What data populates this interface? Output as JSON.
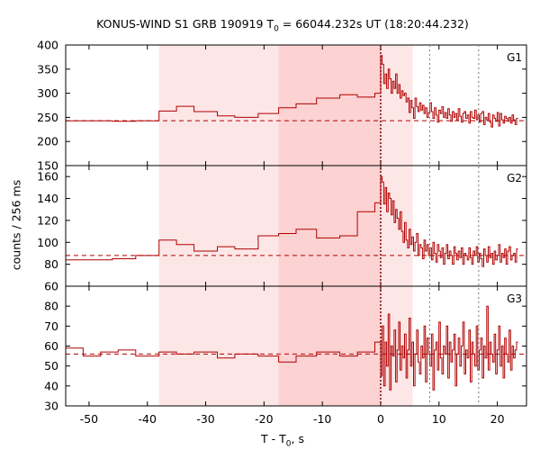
{
  "chart_data": {
    "type": "line",
    "title_main": "KONUS-WIND S1 GRB 190919 T",
    "title_sub": "0",
    "title_tail": " = 66044.232s UT (18:20:44.232)",
    "xlabel_main": "T - T",
    "xlabel_sub": "0",
    "xlabel_tail": ", s",
    "ylabel": "counts / 256 ms",
    "xlim": [
      -54,
      25
    ],
    "xticks": [
      -50,
      -40,
      -30,
      -20,
      -10,
      0,
      10,
      20
    ],
    "shaded_regions": [
      {
        "x0": -38,
        "x1": -17.5,
        "color": "#fde6e6"
      },
      {
        "x0": -17.5,
        "x1": 0,
        "color": "#fcd2d2"
      },
      {
        "x0": 0,
        "x1": 5.5,
        "color": "#fde6e6"
      }
    ],
    "vlines": [
      {
        "x": 0,
        "style": "dotted",
        "color": "#8b0000"
      },
      {
        "x": 8.4,
        "style": "dotted",
        "color": "#777777"
      },
      {
        "x": 16.8,
        "style": "dotted",
        "color": "#777777"
      }
    ],
    "panels": [
      {
        "name": "G1",
        "ylim": [
          150,
          400
        ],
        "yticks": [
          150,
          200,
          250,
          300,
          350,
          400
        ],
        "background": 243,
        "coarse": [
          [
            -54,
            -46,
            243
          ],
          [
            -46,
            -42,
            242
          ],
          [
            -42,
            -38,
            243
          ],
          [
            -38,
            -35,
            263
          ],
          [
            -35,
            -32,
            273
          ],
          [
            -32,
            -28,
            262
          ],
          [
            -28,
            -25,
            253
          ],
          [
            -25,
            -21,
            250
          ],
          [
            -21,
            -17.5,
            258
          ],
          [
            -17.5,
            -14.5,
            270
          ],
          [
            -14.5,
            -11,
            278
          ],
          [
            -11,
            -7,
            290
          ],
          [
            -7,
            -4,
            297
          ],
          [
            -4,
            -1,
            292
          ],
          [
            -1,
            0,
            300
          ]
        ],
        "fine": [
          378,
          360,
          320,
          340,
          310,
          350,
          330,
          300,
          325,
          310,
          340,
          300,
          318,
          290,
          305,
          295,
          300,
          282,
          290,
          260,
          285,
          270,
          248,
          290,
          272,
          262,
          280,
          265,
          275,
          258,
          270,
          250,
          260,
          280,
          262,
          248,
          270,
          255,
          240,
          265,
          258,
          272,
          250,
          260,
          248,
          268,
          255,
          242,
          262,
          250,
          258,
          245,
          268,
          252,
          240,
          258,
          262,
          248,
          255,
          238,
          262,
          250,
          248,
          265,
          245,
          255,
          240,
          258,
          262,
          235,
          250,
          245,
          258,
          240,
          230,
          255,
          248,
          242,
          260,
          232,
          258,
          245,
          238,
          252,
          248,
          242,
          250,
          238,
          255,
          245,
          235,
          248
        ]
      },
      {
        "name": "G2",
        "ylim": [
          60,
          170
        ],
        "yticks": [
          60,
          80,
          100,
          120,
          140,
          160
        ],
        "background": 88,
        "coarse": [
          [
            -54,
            -46,
            84
          ],
          [
            -46,
            -42,
            85
          ],
          [
            -42,
            -38,
            88
          ],
          [
            -38,
            -35,
            102
          ],
          [
            -35,
            -32,
            98
          ],
          [
            -32,
            -28,
            92
          ],
          [
            -28,
            -25,
            96
          ],
          [
            -25,
            -21,
            94
          ],
          [
            -21,
            -17.5,
            106
          ],
          [
            -17.5,
            -14.5,
            108
          ],
          [
            -14.5,
            -11,
            112
          ],
          [
            -11,
            -7,
            104
          ],
          [
            -7,
            -4,
            106
          ],
          [
            -4,
            -1,
            128
          ],
          [
            -1,
            0,
            136
          ]
        ],
        "fine": [
          160,
          155,
          135,
          150,
          128,
          145,
          140,
          125,
          138,
          118,
          130,
          122,
          112,
          128,
          110,
          100,
          118,
          102,
          95,
          112,
          98,
          105,
          92,
          100,
          108,
          88,
          98,
          95,
          85,
          102,
          92,
          98,
          88,
          95,
          84,
          100,
          90,
          82,
          98,
          92,
          86,
          95,
          80,
          90,
          98,
          85,
          92,
          88,
          80,
          96,
          90,
          84,
          92,
          86,
          95,
          80,
          90,
          88,
          84,
          95,
          86,
          80,
          92,
          88,
          96,
          82,
          90,
          85,
          78,
          94,
          88,
          82,
          96,
          86,
          90,
          80,
          92,
          84,
          88,
          98,
          82,
          90,
          86,
          94,
          80,
          92,
          96,
          84,
          88,
          90,
          82,
          94
        ]
      },
      {
        "name": "G3",
        "ylim": [
          30,
          90
        ],
        "yticks": [
          30,
          40,
          50,
          60,
          70,
          80
        ],
        "background": 56,
        "coarse": [
          [
            -54,
            -51,
            59
          ],
          [
            -51,
            -48,
            55
          ],
          [
            -48,
            -45,
            57
          ],
          [
            -45,
            -42,
            58
          ],
          [
            -42,
            -38,
            55
          ],
          [
            -38,
            -35,
            57
          ],
          [
            -35,
            -32,
            56
          ],
          [
            -32,
            -28,
            57
          ],
          [
            -28,
            -25,
            54
          ],
          [
            -25,
            -21,
            56
          ],
          [
            -21,
            -17.5,
            55
          ],
          [
            -17.5,
            -14.5,
            52
          ],
          [
            -14.5,
            -11,
            55
          ],
          [
            -11,
            -7,
            57
          ],
          [
            -7,
            -4,
            55
          ],
          [
            -4,
            -1,
            57
          ],
          [
            -1,
            0,
            62
          ]
        ],
        "fine": [
          45,
          70,
          40,
          62,
          50,
          76,
          38,
          60,
          55,
          68,
          42,
          58,
          72,
          48,
          60,
          54,
          66,
          44,
          58,
          74,
          50,
          62,
          40,
          56,
          68,
          52,
          46,
          60,
          54,
          70,
          42,
          64,
          56,
          50,
          66,
          38,
          58,
          62,
          48,
          72,
          54,
          46,
          60,
          56,
          70,
          44,
          62,
          52,
          58,
          66,
          40,
          56,
          64,
          50,
          60,
          72,
          46,
          58,
          54,
          68,
          42,
          62,
          56,
          50,
          70,
          48,
          58,
          64,
          44,
          60,
          54,
          80,
          48,
          62,
          56,
          52,
          66,
          46,
          58,
          70,
          50,
          60,
          44,
          64,
          56,
          52,
          68,
          48,
          60,
          54,
          58,
          62
        ]
      }
    ]
  }
}
